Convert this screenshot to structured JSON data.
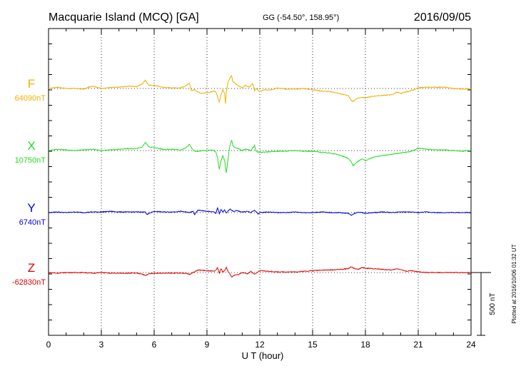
{
  "header": {
    "station": "Macquarie Island (MCQ)  [GA]",
    "coords": "GG (-54.50°, 158.95°)",
    "date": "2016/09/05"
  },
  "plotted_note": "Plotted at 2016/10/06 01:32 UT",
  "chart_data": {
    "type": "line",
    "xlabel": "U T (hour)",
    "xlim": [
      0,
      24
    ],
    "xticks": [
      "0",
      "3",
      "6",
      "9",
      "12",
      "15",
      "18",
      "21",
      "24"
    ],
    "grid": true,
    "scale_bar": {
      "label": "500 nT",
      "value_nT": 500
    },
    "colors": {
      "F": "#f0b000",
      "X": "#22dd22",
      "Y": "#0000d8",
      "Z": "#e00000"
    },
    "series": [
      {
        "name": "F",
        "baseline_label": "64090nT",
        "baseline_nT": 64090,
        "points": [
          [
            0,
            0
          ],
          [
            0.5,
            10
          ],
          [
            1,
            0
          ],
          [
            1.5,
            0
          ],
          [
            2,
            -5
          ],
          [
            2.5,
            20
          ],
          [
            3,
            0
          ],
          [
            3.5,
            8
          ],
          [
            4,
            10
          ],
          [
            4.5,
            18
          ],
          [
            5,
            15
          ],
          [
            5.3,
            35
          ],
          [
            5.5,
            65
          ],
          [
            5.7,
            25
          ],
          [
            6,
            25
          ],
          [
            6.5,
            10
          ],
          [
            7,
            5
          ],
          [
            7.5,
            5
          ],
          [
            7.8,
            20
          ],
          [
            8,
            40
          ],
          [
            8.1,
            -15
          ],
          [
            8.3,
            -10
          ],
          [
            8.6,
            -35
          ],
          [
            9,
            -35
          ],
          [
            9.4,
            -20
          ],
          [
            9.5,
            -25
          ],
          [
            9.6,
            -65
          ],
          [
            9.7,
            -110
          ],
          [
            9.8,
            -50
          ],
          [
            9.9,
            -10
          ],
          [
            10,
            -40
          ],
          [
            10.05,
            -120
          ],
          [
            10.1,
            -30
          ],
          [
            10.2,
            55
          ],
          [
            10.3,
            80
          ],
          [
            10.4,
            105
          ],
          [
            10.45,
            60
          ],
          [
            10.6,
            40
          ],
          [
            10.8,
            20
          ],
          [
            11,
            5
          ],
          [
            11.2,
            25
          ],
          [
            11.4,
            10
          ],
          [
            11.6,
            40
          ],
          [
            11.7,
            -20
          ],
          [
            11.8,
            0
          ],
          [
            12,
            -25
          ],
          [
            12.3,
            -10
          ],
          [
            12.5,
            -15
          ],
          [
            13,
            5
          ],
          [
            13.5,
            -5
          ],
          [
            14,
            -5
          ],
          [
            14.5,
            0
          ],
          [
            15,
            -10
          ],
          [
            15.5,
            -20
          ],
          [
            16,
            -25
          ],
          [
            16.5,
            -40
          ],
          [
            17,
            -55
          ],
          [
            17.2,
            -95
          ],
          [
            17.3,
            -105
          ],
          [
            17.5,
            -80
          ],
          [
            17.8,
            -70
          ],
          [
            18,
            -75
          ],
          [
            18.5,
            -60
          ],
          [
            19,
            -55
          ],
          [
            19.5,
            -50
          ],
          [
            19.8,
            -30
          ],
          [
            20,
            -40
          ],
          [
            20.5,
            -20
          ],
          [
            20.8,
            -10
          ],
          [
            21,
            5
          ],
          [
            21.5,
            10
          ],
          [
            22,
            10
          ],
          [
            22.5,
            10
          ],
          [
            23,
            0
          ],
          [
            23.5,
            -5
          ],
          [
            24,
            0
          ]
        ]
      },
      {
        "name": "X",
        "baseline_label": "10750nT",
        "baseline_nT": 10750,
        "points": [
          [
            0,
            0
          ],
          [
            0.5,
            10
          ],
          [
            1,
            5
          ],
          [
            1.5,
            0
          ],
          [
            2,
            5
          ],
          [
            2.5,
            10
          ],
          [
            3,
            0
          ],
          [
            3.5,
            5
          ],
          [
            4,
            10
          ],
          [
            4.5,
            15
          ],
          [
            5,
            15
          ],
          [
            5.3,
            25
          ],
          [
            5.5,
            65
          ],
          [
            5.7,
            30
          ],
          [
            6,
            25
          ],
          [
            6.5,
            10
          ],
          [
            7,
            10
          ],
          [
            7.5,
            5
          ],
          [
            7.8,
            20
          ],
          [
            8,
            50
          ],
          [
            8.2,
            5
          ],
          [
            8.4,
            -10
          ],
          [
            8.7,
            0
          ],
          [
            9,
            0
          ],
          [
            9.3,
            5
          ],
          [
            9.5,
            -10
          ],
          [
            9.6,
            -60
          ],
          [
            9.7,
            -150
          ],
          [
            9.8,
            -80
          ],
          [
            9.9,
            -40
          ],
          [
            10,
            -80
          ],
          [
            10.1,
            -180
          ],
          [
            10.2,
            -60
          ],
          [
            10.3,
            40
          ],
          [
            10.4,
            80
          ],
          [
            10.5,
            30
          ],
          [
            10.7,
            20
          ],
          [
            11,
            0
          ],
          [
            11.2,
            10
          ],
          [
            11.5,
            0
          ],
          [
            11.7,
            40
          ],
          [
            11.8,
            -10
          ],
          [
            12,
            -15
          ],
          [
            12.5,
            -10
          ],
          [
            13,
            -5
          ],
          [
            13.5,
            -5
          ],
          [
            14,
            0
          ],
          [
            14.5,
            -5
          ],
          [
            15,
            -5
          ],
          [
            15.5,
            -15
          ],
          [
            16,
            -20
          ],
          [
            16.5,
            -35
          ],
          [
            17,
            -60
          ],
          [
            17.2,
            -90
          ],
          [
            17.3,
            -120
          ],
          [
            17.5,
            -95
          ],
          [
            17.8,
            -65
          ],
          [
            18,
            -80
          ],
          [
            18.5,
            -50
          ],
          [
            19,
            -40
          ],
          [
            19.5,
            -30
          ],
          [
            20,
            -20
          ],
          [
            20.5,
            -10
          ],
          [
            20.8,
            5
          ],
          [
            21,
            20
          ],
          [
            21.5,
            10
          ],
          [
            22,
            5
          ],
          [
            22.5,
            5
          ],
          [
            23,
            0
          ],
          [
            23.5,
            -5
          ],
          [
            24,
            0
          ]
        ]
      },
      {
        "name": "Y",
        "baseline_label": "6740nT",
        "baseline_nT": 6740,
        "points": [
          [
            0,
            0
          ],
          [
            0.5,
            5
          ],
          [
            1,
            0
          ],
          [
            1.5,
            5
          ],
          [
            2,
            0
          ],
          [
            2.5,
            5
          ],
          [
            3,
            5
          ],
          [
            3.5,
            10
          ],
          [
            4,
            5
          ],
          [
            4.5,
            5
          ],
          [
            5,
            5
          ],
          [
            5.5,
            5
          ],
          [
            5.6,
            -15
          ],
          [
            5.8,
            0
          ],
          [
            6,
            10
          ],
          [
            6.5,
            5
          ],
          [
            7,
            5
          ],
          [
            7.5,
            10
          ],
          [
            7.8,
            5
          ],
          [
            8,
            0
          ],
          [
            8.2,
            10
          ],
          [
            8.3,
            -15
          ],
          [
            8.5,
            20
          ],
          [
            9,
            10
          ],
          [
            9.4,
            5
          ],
          [
            9.5,
            -5
          ],
          [
            9.6,
            40
          ],
          [
            9.7,
            -10
          ],
          [
            9.8,
            25
          ],
          [
            9.9,
            5
          ],
          [
            10,
            20
          ],
          [
            10.1,
            -5
          ],
          [
            10.3,
            30
          ],
          [
            10.5,
            10
          ],
          [
            10.7,
            15
          ],
          [
            11,
            5
          ],
          [
            11.3,
            10
          ],
          [
            11.5,
            0
          ],
          [
            11.7,
            20
          ],
          [
            11.9,
            -10
          ],
          [
            12,
            0
          ],
          [
            12.5,
            5
          ],
          [
            13,
            0
          ],
          [
            13.5,
            0
          ],
          [
            14,
            5
          ],
          [
            14.5,
            0
          ],
          [
            15,
            0
          ],
          [
            15.5,
            5
          ],
          [
            16,
            0
          ],
          [
            16.5,
            0
          ],
          [
            17,
            -5
          ],
          [
            17.2,
            -20
          ],
          [
            17.4,
            -5
          ],
          [
            17.6,
            5
          ],
          [
            18,
            -5
          ],
          [
            18.5,
            0
          ],
          [
            19,
            5
          ],
          [
            19.5,
            0
          ],
          [
            20,
            5
          ],
          [
            20.5,
            5
          ],
          [
            21,
            0
          ],
          [
            21.5,
            5
          ],
          [
            22,
            0
          ],
          [
            22.5,
            0
          ],
          [
            23,
            0
          ],
          [
            23.5,
            0
          ],
          [
            24,
            0
          ]
        ]
      },
      {
        "name": "Z",
        "baseline_label": "-62830nT",
        "baseline_nT": -62830,
        "points": [
          [
            0,
            0
          ],
          [
            0.5,
            -5
          ],
          [
            1,
            0
          ],
          [
            1.5,
            0
          ],
          [
            2,
            0
          ],
          [
            2.5,
            -5
          ],
          [
            3,
            0
          ],
          [
            3.5,
            -5
          ],
          [
            4,
            -5
          ],
          [
            4.5,
            -5
          ],
          [
            5,
            -5
          ],
          [
            5.3,
            -10
          ],
          [
            5.5,
            -25
          ],
          [
            5.7,
            -10
          ],
          [
            6,
            -5
          ],
          [
            6.5,
            -5
          ],
          [
            7,
            -5
          ],
          [
            7.5,
            -5
          ],
          [
            7.8,
            -5
          ],
          [
            8,
            -15
          ],
          [
            8.2,
            0
          ],
          [
            8.5,
            20
          ],
          [
            9,
            15
          ],
          [
            9.4,
            10
          ],
          [
            9.5,
            15
          ],
          [
            9.6,
            40
          ],
          [
            9.7,
            -5
          ],
          [
            9.8,
            30
          ],
          [
            9.9,
            5
          ],
          [
            10,
            15
          ],
          [
            10.1,
            40
          ],
          [
            10.2,
            10
          ],
          [
            10.4,
            -35
          ],
          [
            10.6,
            -20
          ],
          [
            10.8,
            -15
          ],
          [
            11,
            0
          ],
          [
            11.3,
            -10
          ],
          [
            11.5,
            10
          ],
          [
            11.7,
            -15
          ],
          [
            11.9,
            5
          ],
          [
            12,
            15
          ],
          [
            12.5,
            10
          ],
          [
            13,
            5
          ],
          [
            13.5,
            5
          ],
          [
            14,
            5
          ],
          [
            14.5,
            10
          ],
          [
            15,
            15
          ],
          [
            15.5,
            20
          ],
          [
            16,
            20
          ],
          [
            16.5,
            25
          ],
          [
            17,
            30
          ],
          [
            17.2,
            45
          ],
          [
            17.4,
            30
          ],
          [
            17.6,
            25
          ],
          [
            17.8,
            40
          ],
          [
            18,
            35
          ],
          [
            18.5,
            30
          ],
          [
            19,
            25
          ],
          [
            19.5,
            20
          ],
          [
            19.8,
            30
          ],
          [
            20,
            25
          ],
          [
            20.3,
            10
          ],
          [
            20.6,
            15
          ],
          [
            21,
            5
          ],
          [
            21.5,
            0
          ],
          [
            22,
            0
          ],
          [
            22.5,
            0
          ],
          [
            23,
            0
          ],
          [
            23.5,
            0
          ],
          [
            24,
            0
          ]
        ]
      }
    ]
  }
}
